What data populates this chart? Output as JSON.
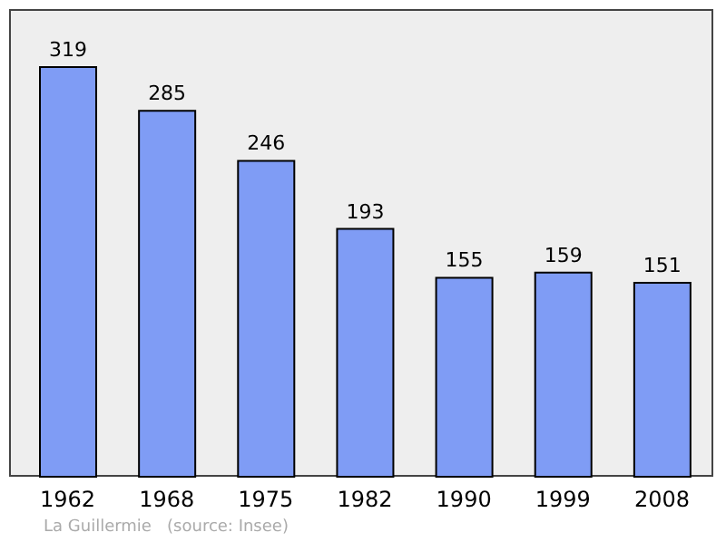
{
  "chart_data": {
    "type": "bar",
    "categories": [
      "1962",
      "1968",
      "1975",
      "1982",
      "1990",
      "1999",
      "2008"
    ],
    "values": [
      319,
      285,
      246,
      193,
      155,
      159,
      151
    ],
    "color": "#7f9cf5",
    "data_labels": true,
    "annotations": [
      "La Guillermie   (source: Insee)"
    ]
  }
}
